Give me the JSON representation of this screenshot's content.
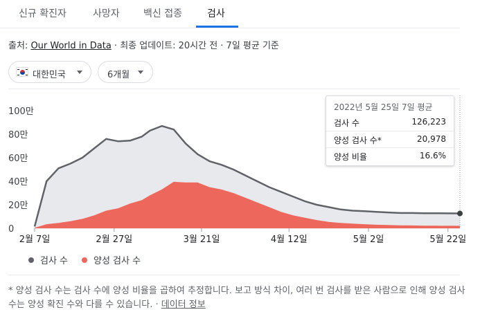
{
  "tabs": [
    {
      "label": "신규 확진자",
      "active": false
    },
    {
      "label": "사망자",
      "active": false
    },
    {
      "label": "백신 접종",
      "active": false
    },
    {
      "label": "검사",
      "active": true
    }
  ],
  "source": {
    "prefix": "출처: ",
    "link_text": "Our World in Data",
    "suffix": " · 최종 업데이트: 20시간 전 · 7일 평균 기준"
  },
  "filters": {
    "country": {
      "label": "대한민국",
      "flag_icon": "south-korea-flag-icon"
    },
    "period": {
      "label": "6개월"
    }
  },
  "tooltip": {
    "title": "2022년 5월 25일 7일 평균",
    "rows": [
      {
        "label": "검사 수",
        "value": "126,223"
      },
      {
        "label": "양성 검사 수*",
        "value": "20,978"
      },
      {
        "label": "양성 비율",
        "value": "16.6%"
      }
    ]
  },
  "legend": [
    {
      "label": "검사 수",
      "color": "#5f6368"
    },
    {
      "label": "양성 검사 수",
      "color": "#ee675c"
    }
  ],
  "footnote": {
    "text": "* 양성 검사 수는 검사 수에 양성 비율을 곱하여 추정합니다. 보고 방식 차이, 여러 번 검사를 받은 사람으로 인해 양성 검사 수는 양성 확진 수와 다를 수 있습니다. · ",
    "link_text": "데이터 정보"
  },
  "chart_data": {
    "type": "area",
    "title": "",
    "xlabel": "",
    "ylabel": "",
    "x_ticks": [
      "2월 7일",
      "2월 27일",
      "3월 21일",
      "4월 12일",
      "5월 2일",
      "5월 22일"
    ],
    "y_ticks": [
      "0",
      "20만",
      "40만",
      "60만",
      "80만",
      "100만"
    ],
    "ylim": [
      0,
      1000000
    ],
    "x": [
      "2022-02-07",
      "2022-02-10",
      "2022-02-13",
      "2022-02-16",
      "2022-02-19",
      "2022-02-22",
      "2022-02-25",
      "2022-02-28",
      "2022-03-03",
      "2022-03-06",
      "2022-03-08",
      "2022-03-11",
      "2022-03-14",
      "2022-03-17",
      "2022-03-20",
      "2022-03-23",
      "2022-03-26",
      "2022-03-29",
      "2022-04-01",
      "2022-04-04",
      "2022-04-07",
      "2022-04-10",
      "2022-04-13",
      "2022-04-16",
      "2022-04-19",
      "2022-04-22",
      "2022-04-25",
      "2022-04-28",
      "2022-05-01",
      "2022-05-04",
      "2022-05-07",
      "2022-05-10",
      "2022-05-13",
      "2022-05-16",
      "2022-05-19",
      "2022-05-22",
      "2022-05-25"
    ],
    "series": [
      {
        "name": "검사 수",
        "color": "#5f6368",
        "values": [
          15000,
          400000,
          510000,
          550000,
          600000,
          680000,
          760000,
          740000,
          745000,
          780000,
          830000,
          870000,
          840000,
          720000,
          630000,
          570000,
          540000,
          500000,
          450000,
          400000,
          350000,
          310000,
          270000,
          230000,
          200000,
          180000,
          160000,
          150000,
          145000,
          140000,
          135000,
          130000,
          130000,
          128000,
          128000,
          127000,
          126223
        ]
      },
      {
        "name": "양성 검사 수",
        "color": "#ee675c",
        "values": [
          5000,
          35000,
          45000,
          60000,
          80000,
          110000,
          150000,
          170000,
          210000,
          240000,
          280000,
          330000,
          395000,
          390000,
          390000,
          350000,
          330000,
          300000,
          260000,
          220000,
          180000,
          140000,
          110000,
          90000,
          70000,
          55000,
          45000,
          40000,
          35000,
          30000,
          28000,
          25000,
          24000,
          22000,
          22000,
          21000,
          20978
        ]
      }
    ],
    "grid": false,
    "legend_position": "bottom-left"
  }
}
